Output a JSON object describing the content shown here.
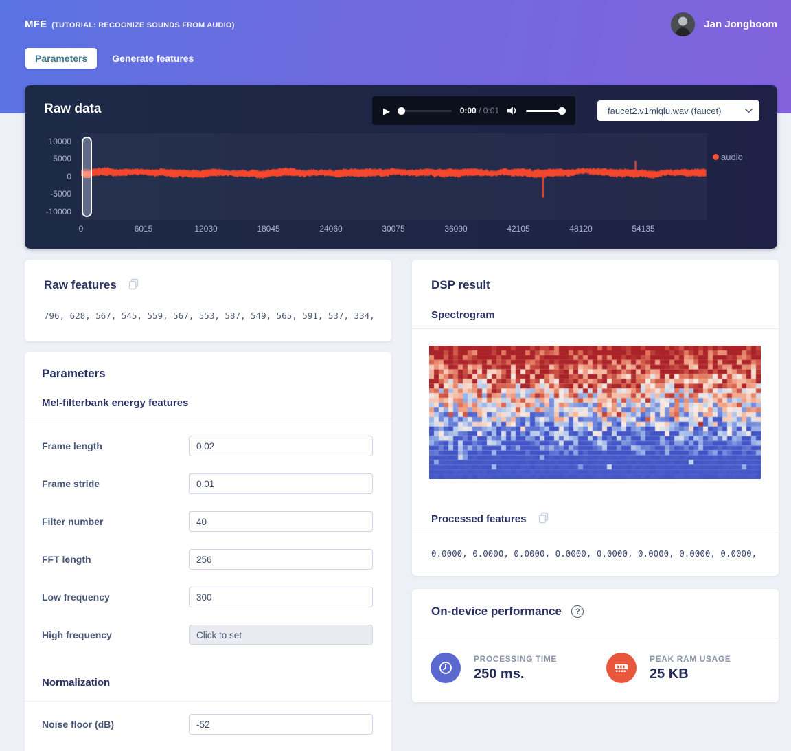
{
  "header": {
    "app_title": "MFE",
    "app_subtitle": "(TUTORIAL: RECOGNIZE SOUNDS FROM AUDIO)",
    "user_name": "Jan Jongboom",
    "tabs": [
      {
        "label": "Parameters",
        "active": true
      },
      {
        "label": "Generate features",
        "active": false
      }
    ]
  },
  "raw_data": {
    "title": "Raw data",
    "player": {
      "current_time": "0:00",
      "duration_text": "/ 0:01"
    },
    "sample_select": {
      "value": "faucet2.v1mlqlu.wav (faucet)"
    },
    "legend": {
      "label": "audio",
      "color": "#f4502c"
    }
  },
  "chart_data": [
    {
      "type": "line",
      "title": "Raw data (audio waveform)",
      "series": [
        {
          "name": "audio",
          "color": "#f4472e"
        }
      ],
      "x_ticks": [
        0,
        6015,
        12030,
        18045,
        24060,
        30075,
        36090,
        42105,
        48120,
        54135
      ],
      "y_ticks": [
        10000,
        5000,
        0,
        -5000,
        -10000
      ],
      "ylim": [
        -12500,
        12500
      ],
      "xlim": [
        0,
        60300
      ],
      "grid": false,
      "legend_position": "right",
      "baseline_offset": 1000,
      "noise_amplitude": 1800,
      "spikes": [
        {
          "x": 44400,
          "y": -6000
        },
        {
          "x": 53300,
          "y": 4500
        }
      ]
    },
    {
      "type": "heatmap",
      "title": "Spectrogram",
      "colormap": "coolwarm",
      "cols": 69,
      "rows": 28,
      "description": "warm red/salmon energy in top rows fading through light blue to solid blue at bottom"
    }
  ],
  "raw_features": {
    "title": "Raw features",
    "values": "796, 628, 567, 545, 559, 567, 553, 587, 549, 565, 591, 537, 334, …"
  },
  "parameters": {
    "title": "Parameters",
    "section1": "Mel-filterbank energy features",
    "fields": [
      {
        "label": "Frame length",
        "value": "0.02"
      },
      {
        "label": "Frame stride",
        "value": "0.01"
      },
      {
        "label": "Filter number",
        "value": "40"
      },
      {
        "label": "FFT length",
        "value": "256"
      },
      {
        "label": "Low frequency",
        "value": "300"
      },
      {
        "label": "High frequency",
        "value": "Click to set"
      }
    ],
    "section2": "Normalization",
    "fields2": [
      {
        "label": "Noise floor (dB)",
        "value": "-52"
      }
    ]
  },
  "dsp_result": {
    "title": "DSP result",
    "spectrogram_label": "Spectrogram",
    "processed_title": "Processed features",
    "processed_values": "0.0000, 0.0000, 0.0000, 0.0000, 0.0000, 0.0000, 0.0000, 0.0000, 0…"
  },
  "performance": {
    "title": "On-device performance",
    "metrics": [
      {
        "label": "PROCESSING TIME",
        "value": "250 ms.",
        "icon": "clock-icon",
        "color": "#5b68d0"
      },
      {
        "label": "PEAK RAM USAGE",
        "value": "25 KB",
        "icon": "ram-icon",
        "color": "#e8563c"
      }
    ]
  },
  "colors": {
    "accent_orange": "#f4502c",
    "accent_blue": "#5b68d0",
    "dark_card": "#1d2746",
    "page_bg": "#eef0f7"
  }
}
